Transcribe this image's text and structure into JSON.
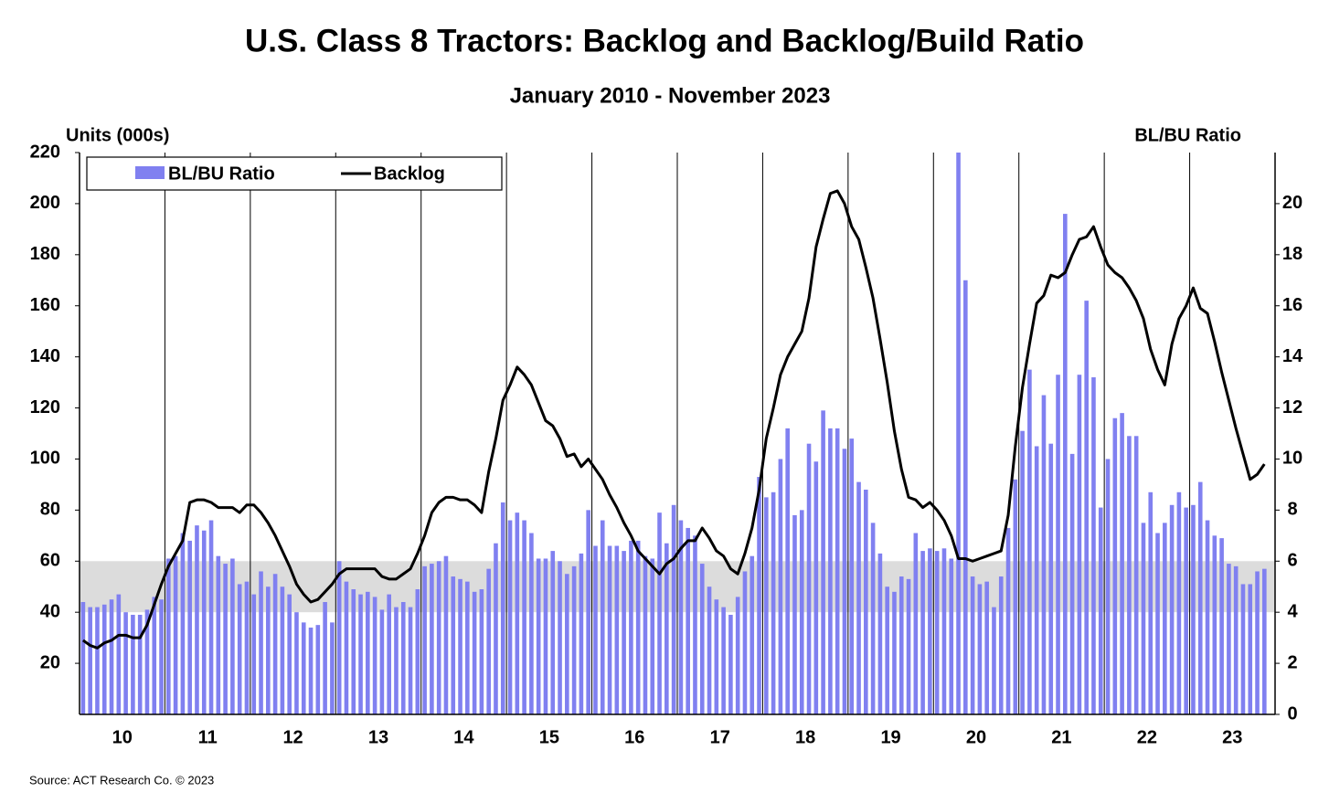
{
  "chart_data": {
    "type": "combo",
    "title": "U.S. Class 8 Tractors: Backlog and Backlog/Build Ratio",
    "subtitle": "January 2010 - November 2023",
    "y_label": "Units (000s)",
    "y2_label": "BL/BU Ratio",
    "source": "Source: ACT Research Co. © 2023",
    "year_labels": [
      "10",
      "11",
      "12",
      "13",
      "14",
      "15",
      "16",
      "17",
      "18",
      "19",
      "20",
      "21",
      "22",
      "23"
    ],
    "ylim": [
      0,
      220
    ],
    "yticks": [
      20,
      40,
      60,
      80,
      100,
      120,
      140,
      160,
      180,
      200,
      220
    ],
    "y2lim": [
      0,
      22
    ],
    "y2ticks": [
      0,
      2,
      4,
      6,
      8,
      10,
      12,
      14,
      16,
      18,
      20
    ],
    "band": [
      40,
      60
    ],
    "band_color": "#dcdcdc",
    "legend": "top-left",
    "series": [
      {
        "name": "BL/BU Ratio",
        "type": "bar",
        "axis": "y2",
        "color": "#8080f0",
        "values": [
          4.4,
          4.2,
          4.2,
          4.3,
          4.5,
          4.7,
          4.0,
          3.9,
          3.9,
          4.1,
          4.6,
          4.5,
          6.1,
          6.2,
          7.1,
          6.8,
          7.4,
          7.2,
          7.6,
          6.2,
          5.9,
          6.1,
          5.1,
          5.2,
          4.7,
          5.6,
          5.0,
          5.5,
          5.0,
          4.7,
          4.0,
          3.6,
          3.4,
          3.5,
          4.4,
          3.6,
          6.0,
          5.2,
          4.9,
          4.7,
          4.8,
          4.6,
          4.1,
          4.7,
          4.2,
          4.4,
          4.2,
          4.9,
          5.8,
          5.9,
          6.0,
          6.2,
          5.4,
          5.3,
          5.2,
          4.8,
          4.9,
          5.7,
          6.7,
          8.3,
          7.6,
          7.9,
          7.6,
          7.1,
          6.1,
          6.1,
          6.4,
          6.0,
          5.5,
          5.8,
          6.3,
          8.0,
          6.6,
          7.6,
          6.6,
          6.6,
          6.4,
          6.8,
          6.8,
          6.2,
          6.1,
          7.9,
          6.7,
          8.2,
          7.6,
          7.3,
          7.0,
          5.9,
          5.0,
          4.5,
          4.2,
          3.9,
          4.6,
          5.6,
          6.2,
          9.3,
          8.5,
          8.7,
          10.0,
          11.2,
          7.8,
          8.0,
          10.6,
          9.9,
          11.9,
          11.2,
          11.2,
          10.4,
          10.8,
          9.1,
          8.8,
          7.5,
          6.3,
          5.0,
          4.8,
          5.4,
          5.3,
          7.1,
          6.4,
          6.5,
          6.4,
          6.5,
          6.1,
          22.0,
          17.0,
          5.4,
          5.1,
          5.2,
          4.2,
          5.4,
          7.3,
          9.2,
          11.1,
          13.5,
          10.5,
          12.5,
          10.6,
          13.3,
          19.6,
          10.2,
          13.3,
          16.2,
          13.2,
          8.1,
          10.0,
          11.6,
          11.8,
          10.9,
          10.9,
          7.5,
          8.7,
          7.1,
          7.5,
          8.2,
          8.7,
          8.1,
          8.2,
          9.1,
          7.6,
          7.0,
          6.9,
          5.9,
          5.8,
          5.1,
          5.1,
          5.6,
          5.7
        ]
      },
      {
        "name": "Backlog",
        "type": "line",
        "color": "#000000",
        "values": [
          29,
          27,
          26,
          28,
          29,
          31,
          31,
          30,
          30,
          35,
          43,
          51,
          58,
          63,
          68,
          83,
          84,
          84,
          83,
          81,
          81,
          81,
          79,
          82,
          82,
          79,
          75,
          70,
          64,
          58,
          51,
          47,
          44,
          45,
          48,
          51,
          55,
          57,
          57,
          57,
          57,
          57,
          54,
          53,
          53,
          55,
          57,
          63,
          70,
          79,
          83,
          85,
          85,
          84,
          84,
          82,
          79,
          95,
          108,
          123,
          129,
          136,
          133,
          129,
          122,
          115,
          113,
          108,
          101,
          102,
          97,
          100,
          96,
          92,
          86,
          81,
          75,
          70,
          64,
          61,
          58,
          55,
          59,
          61,
          65,
          68,
          68,
          73,
          69,
          64,
          62,
          57,
          55,
          63,
          73,
          88,
          108,
          120,
          133,
          140,
          145,
          150,
          163,
          183,
          194,
          204,
          205,
          200,
          191,
          186,
          175,
          163,
          147,
          130,
          111,
          96,
          85,
          84,
          81,
          83,
          80,
          76,
          70,
          61,
          61,
          60,
          61,
          62,
          63,
          64,
          78,
          105,
          128,
          145,
          161,
          164,
          172,
          171,
          173,
          180,
          186,
          187,
          191,
          183,
          176,
          173,
          171,
          167,
          162,
          155,
          143,
          135,
          129,
          145,
          155,
          160,
          167,
          159,
          157,
          146,
          134,
          123,
          112,
          102,
          92,
          94,
          98
        ]
      }
    ]
  }
}
